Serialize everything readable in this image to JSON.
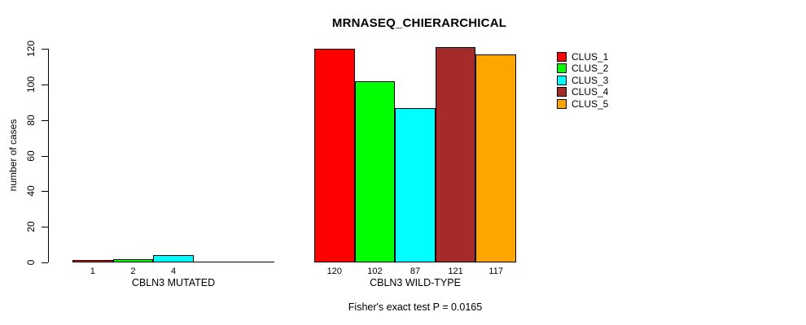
{
  "chart_data": {
    "type": "bar",
    "title": "MRNASEQ_CHIERARCHICAL",
    "ylabel": "number of cases",
    "ylim": [
      0,
      120
    ],
    "yticks": [
      0,
      20,
      40,
      60,
      80,
      100,
      120
    ],
    "grid": false,
    "legend_position": "right",
    "series_names": [
      "CLUS_1",
      "CLUS_2",
      "CLUS_3",
      "CLUS_4",
      "CLUS_5"
    ],
    "series_colors": [
      "#ff0000",
      "#00ff00",
      "#00ffff",
      "#a52a2a",
      "#ffa500"
    ],
    "groups": [
      {
        "label": "CBLN3 MUTATED",
        "values": [
          1,
          2,
          4,
          0,
          0
        ]
      },
      {
        "label": "CBLN3 WILD-TYPE",
        "values": [
          120,
          102,
          87,
          121,
          117
        ]
      }
    ],
    "bar_value_labels_shown_for_nonzero_only": true,
    "footnote": "Fisher's exact test P = 0.0165",
    "background_color": "#ffffff",
    "axis_color": "#000000"
  }
}
